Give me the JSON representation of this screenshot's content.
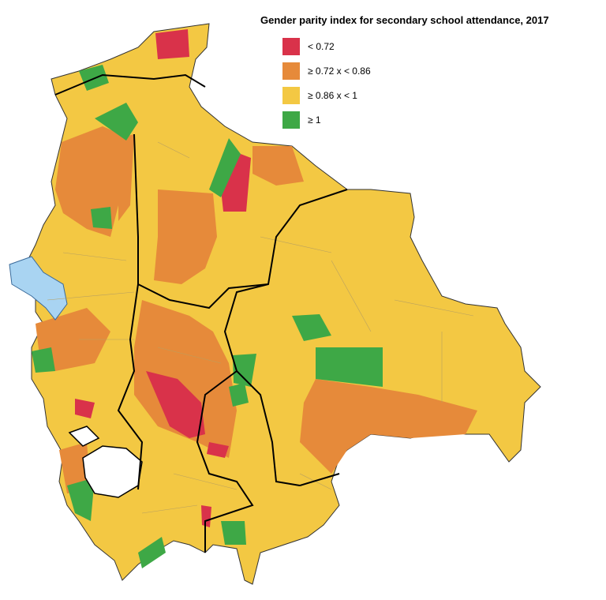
{
  "title": "Gender parity index for secondary school attendance, 2017",
  "legend": [
    {
      "label": "< 0.72",
      "color": "#d9324a"
    },
    {
      "label": "≥ 0.72 x < 0.86",
      "color": "#e68a3a"
    },
    {
      "label": "≥ 0.86 x < 1",
      "color": "#f3c843"
    },
    {
      "label": "≥ 1",
      "color": "#3ea846"
    }
  ]
}
